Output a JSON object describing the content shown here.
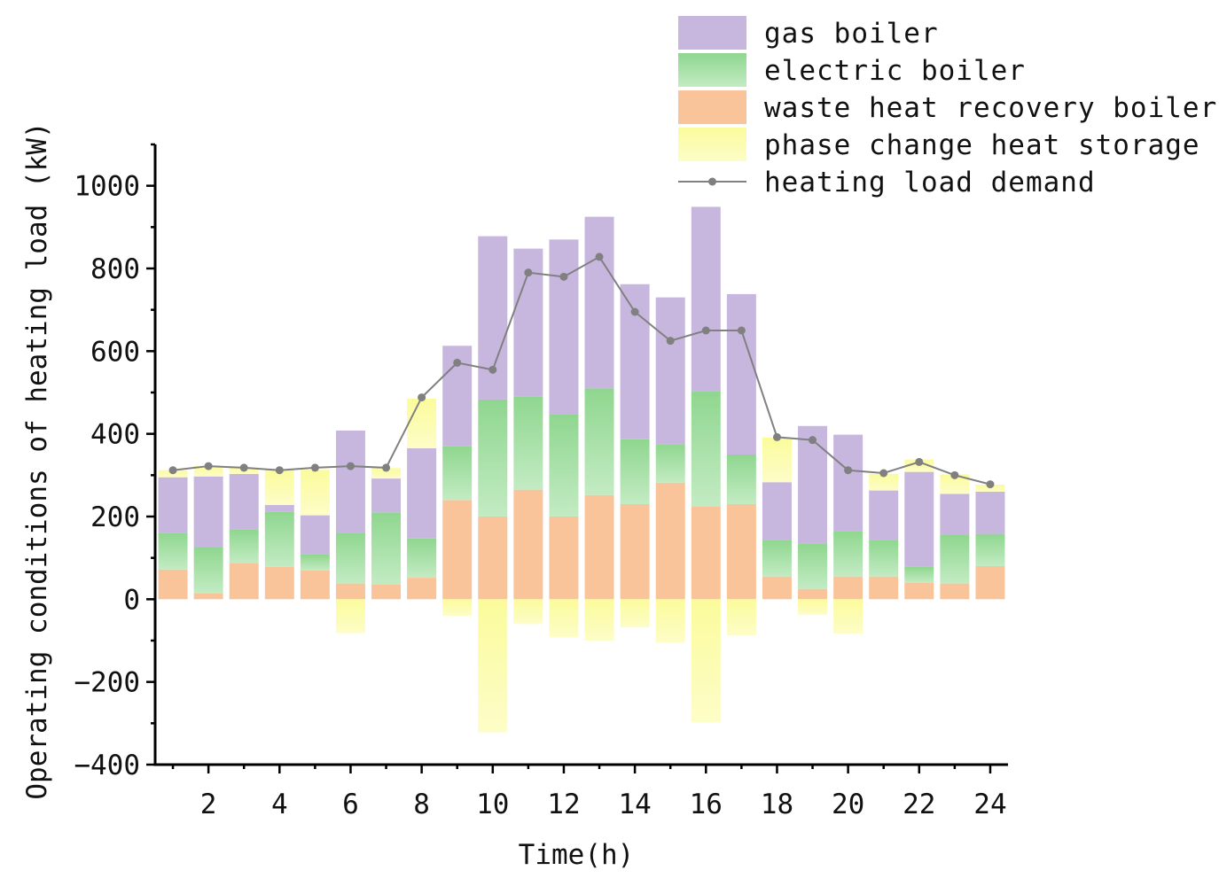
{
  "chart_data": {
    "type": "bar",
    "stacked": true,
    "title": "",
    "xlabel": "Time(h)",
    "ylabel": "Operating conditions of heating load (kW)",
    "ylim": [
      -400,
      1100
    ],
    "yticks": [
      -400,
      -200,
      0,
      200,
      400,
      600,
      800,
      1000
    ],
    "xticks": [
      2,
      4,
      6,
      8,
      10,
      12,
      14,
      16,
      18,
      20,
      22,
      24
    ],
    "x": [
      1,
      2,
      3,
      4,
      5,
      6,
      7,
      8,
      9,
      10,
      11,
      12,
      13,
      14,
      15,
      16,
      17,
      18,
      19,
      20,
      21,
      22,
      23,
      24
    ],
    "series": [
      {
        "name": "waste heat recovery boiler",
        "key": "waste",
        "color": "#f9c49a",
        "values": [
          72,
          15,
          88,
          78,
          70,
          38,
          35,
          52,
          240,
          200,
          265,
          200,
          252,
          230,
          282,
          225,
          230,
          55,
          25,
          55,
          55,
          40,
          38,
          80
        ]
      },
      {
        "name": "electric boiler",
        "key": "electric",
        "color": "#9fdb9f",
        "values": [
          88,
          110,
          80,
          133,
          38,
          123,
          175,
          95,
          130,
          283,
          225,
          248,
          258,
          157,
          93,
          278,
          120,
          88,
          110,
          110,
          88,
          38,
          117,
          78
        ]
      },
      {
        "name": "gas boiler",
        "key": "gas",
        "color": "#c7b7de",
        "values": [
          135,
          172,
          135,
          17,
          95,
          247,
          82,
          218,
          243,
          395,
          358,
          422,
          415,
          375,
          355,
          446,
          388,
          140,
          284,
          233,
          120,
          230,
          100,
          102
        ]
      },
      {
        "name": "phase change heat storage",
        "key": "storage",
        "color": "#fbfb9c",
        "values": [
          17,
          25,
          15,
          85,
          110,
          -82,
          25,
          120,
          -40,
          -322,
          -60,
          -92,
          -100,
          -68,
          -105,
          -298,
          -87,
          108,
          -38,
          -83,
          40,
          30,
          47,
          17
        ]
      }
    ],
    "line": {
      "name": "heating load demand",
      "color": "#808080",
      "values": [
        312,
        322,
        318,
        312,
        318,
        322,
        318,
        488,
        572,
        555,
        790,
        780,
        828,
        695,
        625,
        650,
        650,
        392,
        385,
        312,
        305,
        332,
        300,
        278
      ]
    },
    "legend_order": [
      "gas",
      "electric",
      "waste",
      "storage",
      "line"
    ],
    "legend_position": "top-right"
  }
}
